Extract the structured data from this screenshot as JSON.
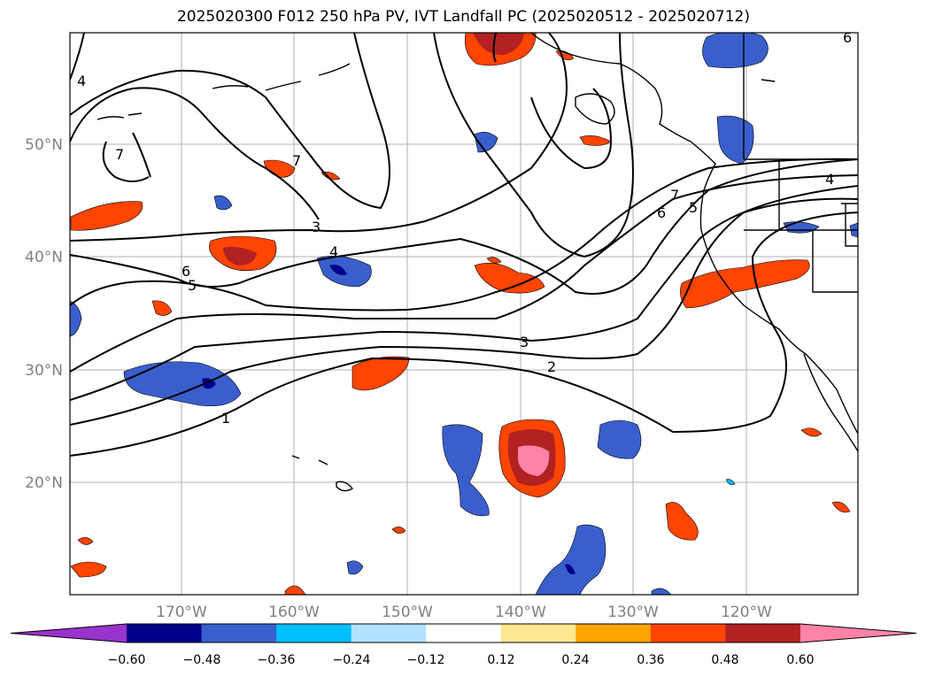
{
  "title": "2025020300 F012 250 hPa PV, IVT Landfall PC (2025020512 - 2025020712)",
  "lat_labels": [
    "50°N",
    "40°N",
    "30°N",
    "20°N"
  ],
  "lon_labels": [
    "170°W",
    "160°W",
    "150°W",
    "140°W",
    "130°W",
    "120°W"
  ],
  "contour_labels": [
    "1",
    "2",
    "3",
    "4",
    "5",
    "6",
    "7"
  ],
  "colorbar": {
    "ticks": [
      "−0.60",
      "−0.48",
      "−0.36",
      "−0.24",
      "−0.12",
      "0.12",
      "0.24",
      "0.36",
      "0.48",
      "0.60"
    ],
    "colors": [
      "#9a32cd",
      "#00008b",
      "#3a5fcd",
      "#00bfff",
      "#b0e2ff",
      "#ffffff",
      "#ffe890",
      "#ffa500",
      "#ff4500",
      "#b22222",
      "#ff83a8"
    ]
  }
}
